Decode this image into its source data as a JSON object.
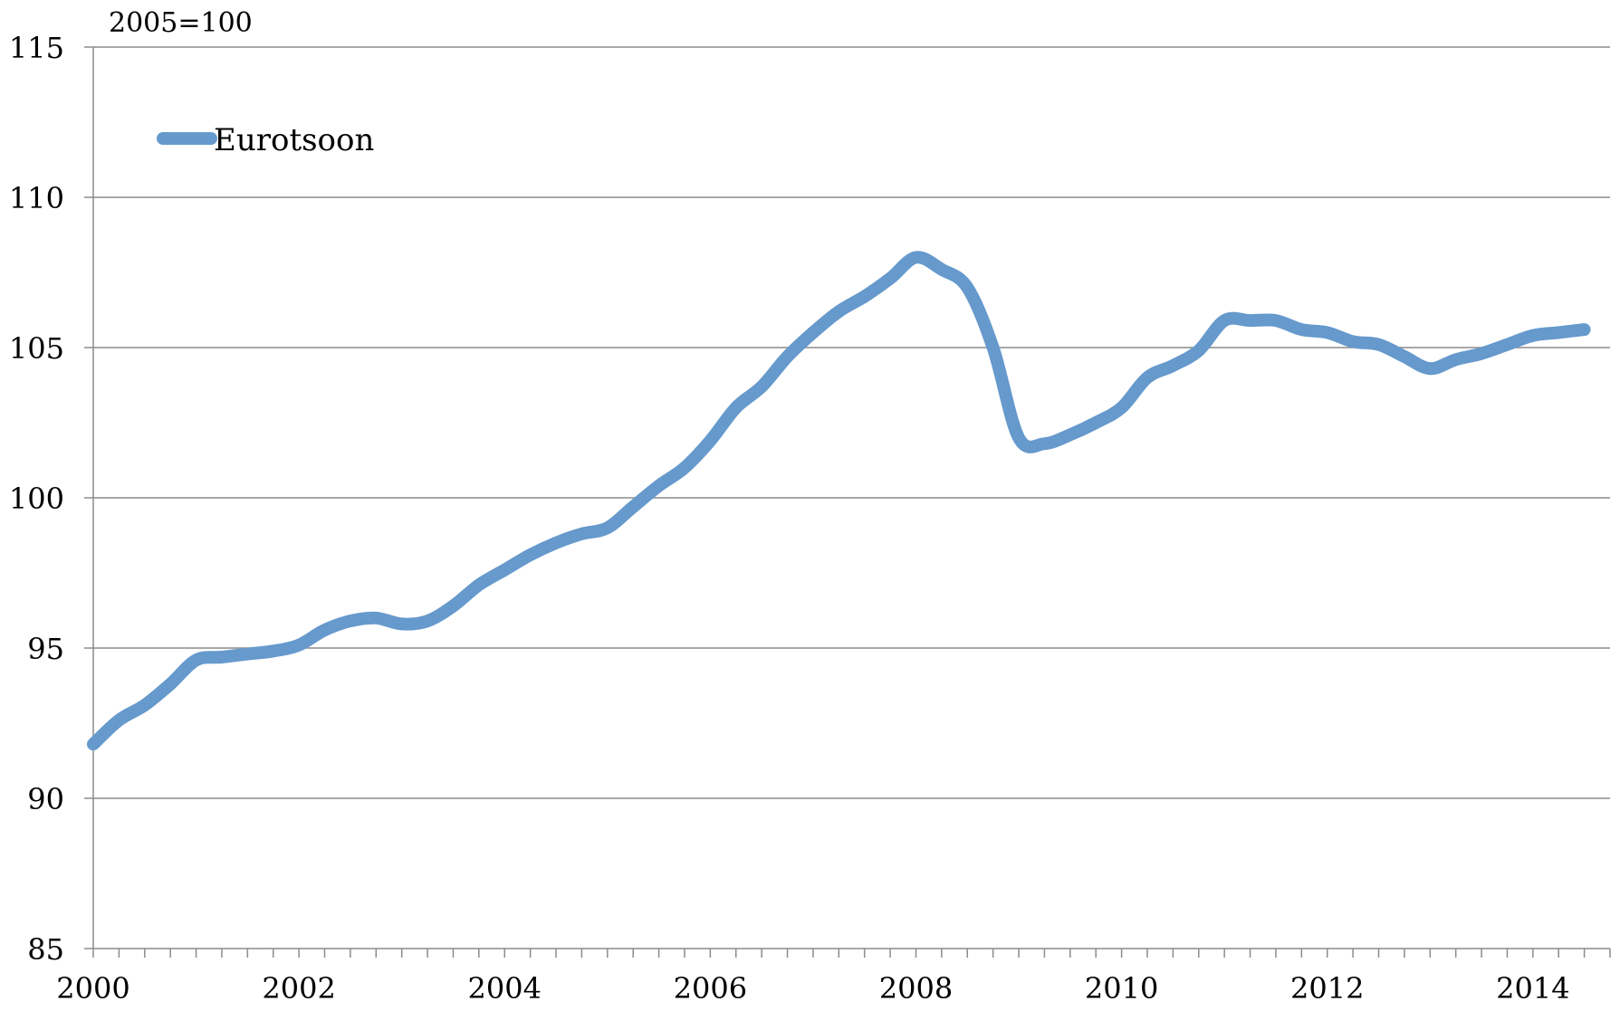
{
  "chart_data": {
    "type": "line",
    "ylabel": "2005=100",
    "ylim": [
      85,
      115
    ],
    "yticks": [
      85,
      90,
      95,
      100,
      105,
      110,
      115
    ],
    "xlim": [
      2000,
      2014.75
    ],
    "xticks": [
      2000,
      2002,
      2004,
      2006,
      2008,
      2010,
      2012,
      2014
    ],
    "grid": "horizontal",
    "legend_position": "top-left",
    "series": [
      {
        "name": "Eurotsoon",
        "color": "#6699cc",
        "x": [
          2000.0,
          2000.25,
          2000.5,
          2000.75,
          2001.0,
          2001.25,
          2001.5,
          2001.75,
          2002.0,
          2002.25,
          2002.5,
          2002.75,
          2003.0,
          2003.25,
          2003.5,
          2003.75,
          2004.0,
          2004.25,
          2004.5,
          2004.75,
          2005.0,
          2005.25,
          2005.5,
          2005.75,
          2006.0,
          2006.25,
          2006.5,
          2006.75,
          2007.0,
          2007.25,
          2007.5,
          2007.75,
          2008.0,
          2008.25,
          2008.5,
          2008.75,
          2009.0,
          2009.25,
          2009.5,
          2009.75,
          2010.0,
          2010.25,
          2010.5,
          2010.75,
          2011.0,
          2011.25,
          2011.5,
          2011.75,
          2012.0,
          2012.25,
          2012.5,
          2012.75,
          2013.0,
          2013.25,
          2013.5,
          2013.75,
          2014.0,
          2014.25,
          2014.5
        ],
        "y": [
          91.8,
          92.6,
          93.1,
          93.8,
          94.6,
          94.7,
          94.8,
          94.9,
          95.1,
          95.6,
          95.9,
          96.0,
          95.8,
          95.9,
          96.4,
          97.1,
          97.6,
          98.1,
          98.5,
          98.8,
          99.0,
          99.7,
          100.4,
          101.0,
          101.9,
          103.0,
          103.7,
          104.7,
          105.5,
          106.2,
          106.7,
          107.3,
          108.0,
          107.6,
          107.0,
          105.0,
          102.0,
          101.8,
          102.1,
          102.5,
          103.0,
          104.0,
          104.4,
          104.9,
          105.9,
          105.9,
          105.9,
          105.6,
          105.5,
          105.2,
          105.1,
          104.7,
          104.3,
          104.6,
          104.8,
          105.1,
          105.4,
          105.5,
          105.6
        ]
      }
    ]
  }
}
